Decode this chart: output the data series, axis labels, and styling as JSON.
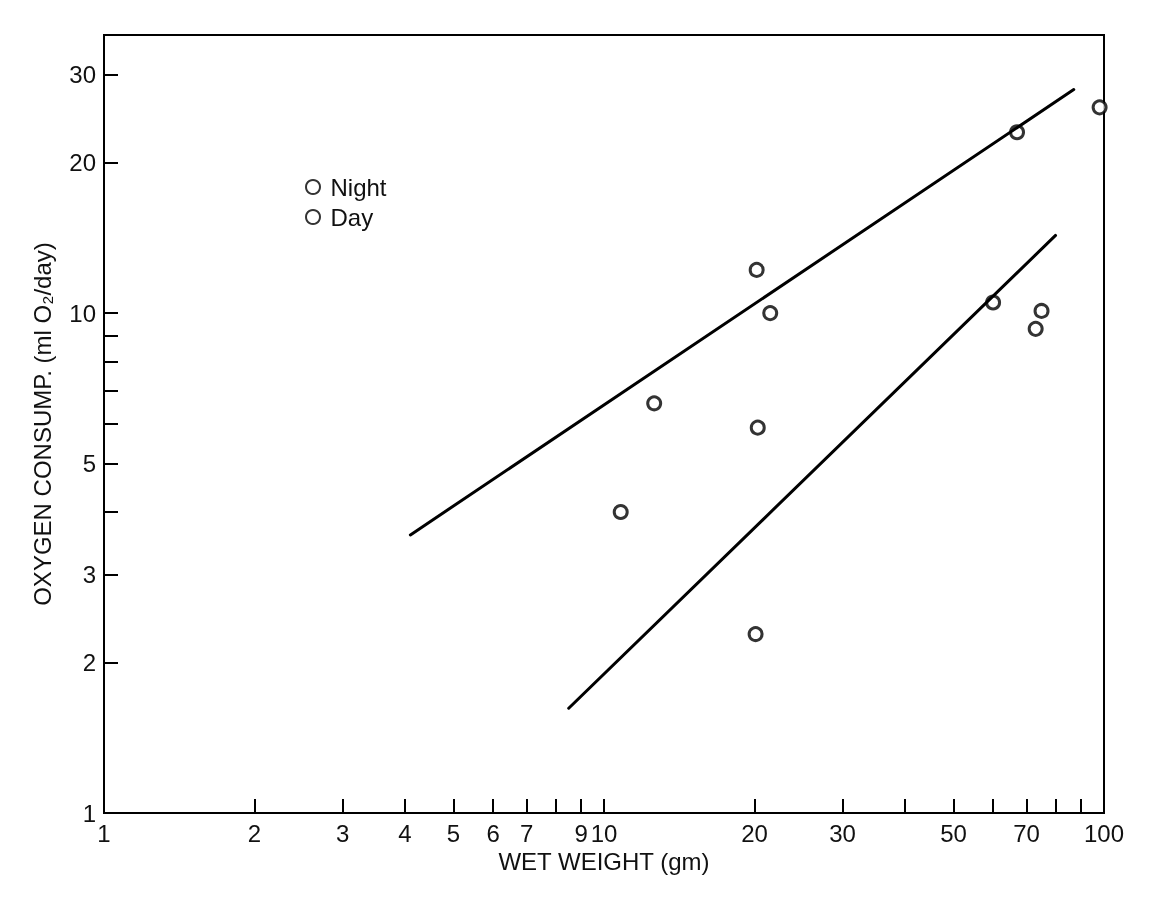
{
  "chart_data": {
    "type": "scatter",
    "xlabel": "WET WEIGHT (gm)",
    "ylabel": "OXYGEN CONSUMP. (ml O₂/day)",
    "log": "xy",
    "grid": false,
    "legend": "top left",
    "marker": "circle",
    "line_style": "solid",
    "xlim": [
      1,
      100
    ],
    "ylim": [
      1,
      36
    ],
    "xticks": [
      1,
      2,
      3,
      4,
      5,
      6,
      7,
      {
        "value": 8,
        "label": null
      },
      9,
      10,
      20,
      30,
      {
        "value": 40,
        "label": null
      },
      50,
      {
        "value": 60,
        "label": null
      },
      70,
      {
        "value": 80,
        "label": null
      },
      {
        "value": 90,
        "label": null
      },
      100
    ],
    "yticks": [
      1,
      2,
      3,
      {
        "value": 4,
        "label": null
      },
      5,
      {
        "value": 6,
        "label": null
      },
      {
        "value": 7,
        "label": null
      },
      {
        "value": 8,
        "label": null
      },
      {
        "value": 9,
        "label": null
      },
      10,
      20,
      30
    ],
    "series": [
      {
        "name": "Night",
        "color": "#000000",
        "x": [
          12.6,
          20.2,
          21.5,
          67,
          98
        ],
        "values": [
          6.6,
          12.2,
          10,
          23,
          25.8
        ]
      },
      {
        "name": "Day",
        "color": "#000000",
        "x": [
          10.8,
          20.3,
          20.1,
          60,
          73,
          75
        ],
        "values": [
          4,
          5.9,
          2.28,
          10.5,
          9.3,
          10.1
        ]
      },
      {
        "type": "line",
        "color": "#000000",
        "marker": "none",
        "x": [
          4.1,
          87
        ],
        "values": [
          3.6,
          28
        ]
      },
      {
        "type": "line",
        "color": "#000000",
        "marker": "none",
        "x": [
          8.5,
          80
        ],
        "values": [
          1.62,
          14.3
        ]
      }
    ]
  }
}
